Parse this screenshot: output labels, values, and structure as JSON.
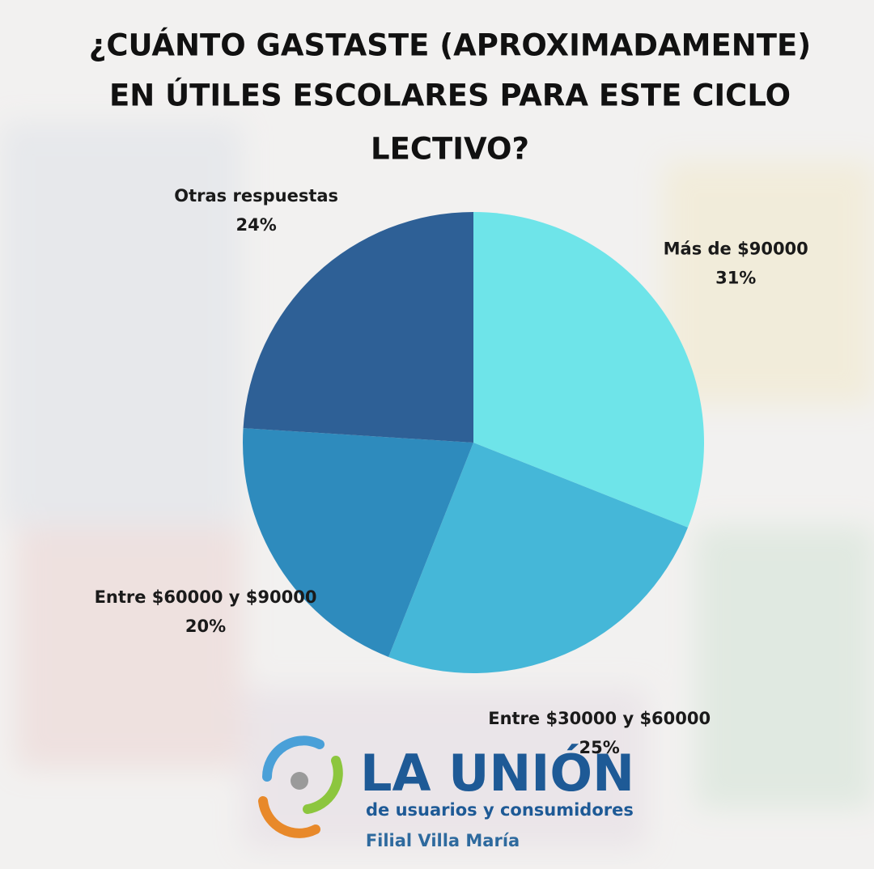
{
  "chart_data": {
    "type": "pie",
    "title_lines": [
      "¿CUÁNTO GASTASTE (APROXIMADAMENTE)",
      "EN ÚTILES ESCOLARES PARA ESTE CICLO",
      "LECTIVO?"
    ],
    "categories": [
      "Más de $90000",
      "Entre $30000 y $60000",
      "Entre $60000 y $90000",
      "Otras respuestas"
    ],
    "values": [
      31,
      25,
      20,
      24
    ],
    "value_labels": [
      "31%",
      "25%",
      "20%",
      "24%"
    ],
    "colors": [
      "#6ee4e9",
      "#45b7d8",
      "#2e8bbd",
      "#2e6096"
    ]
  },
  "logo": {
    "name": "LA UNIÓN",
    "tagline": "de usuarios y consumidores",
    "branch": "Filial Villa María"
  }
}
